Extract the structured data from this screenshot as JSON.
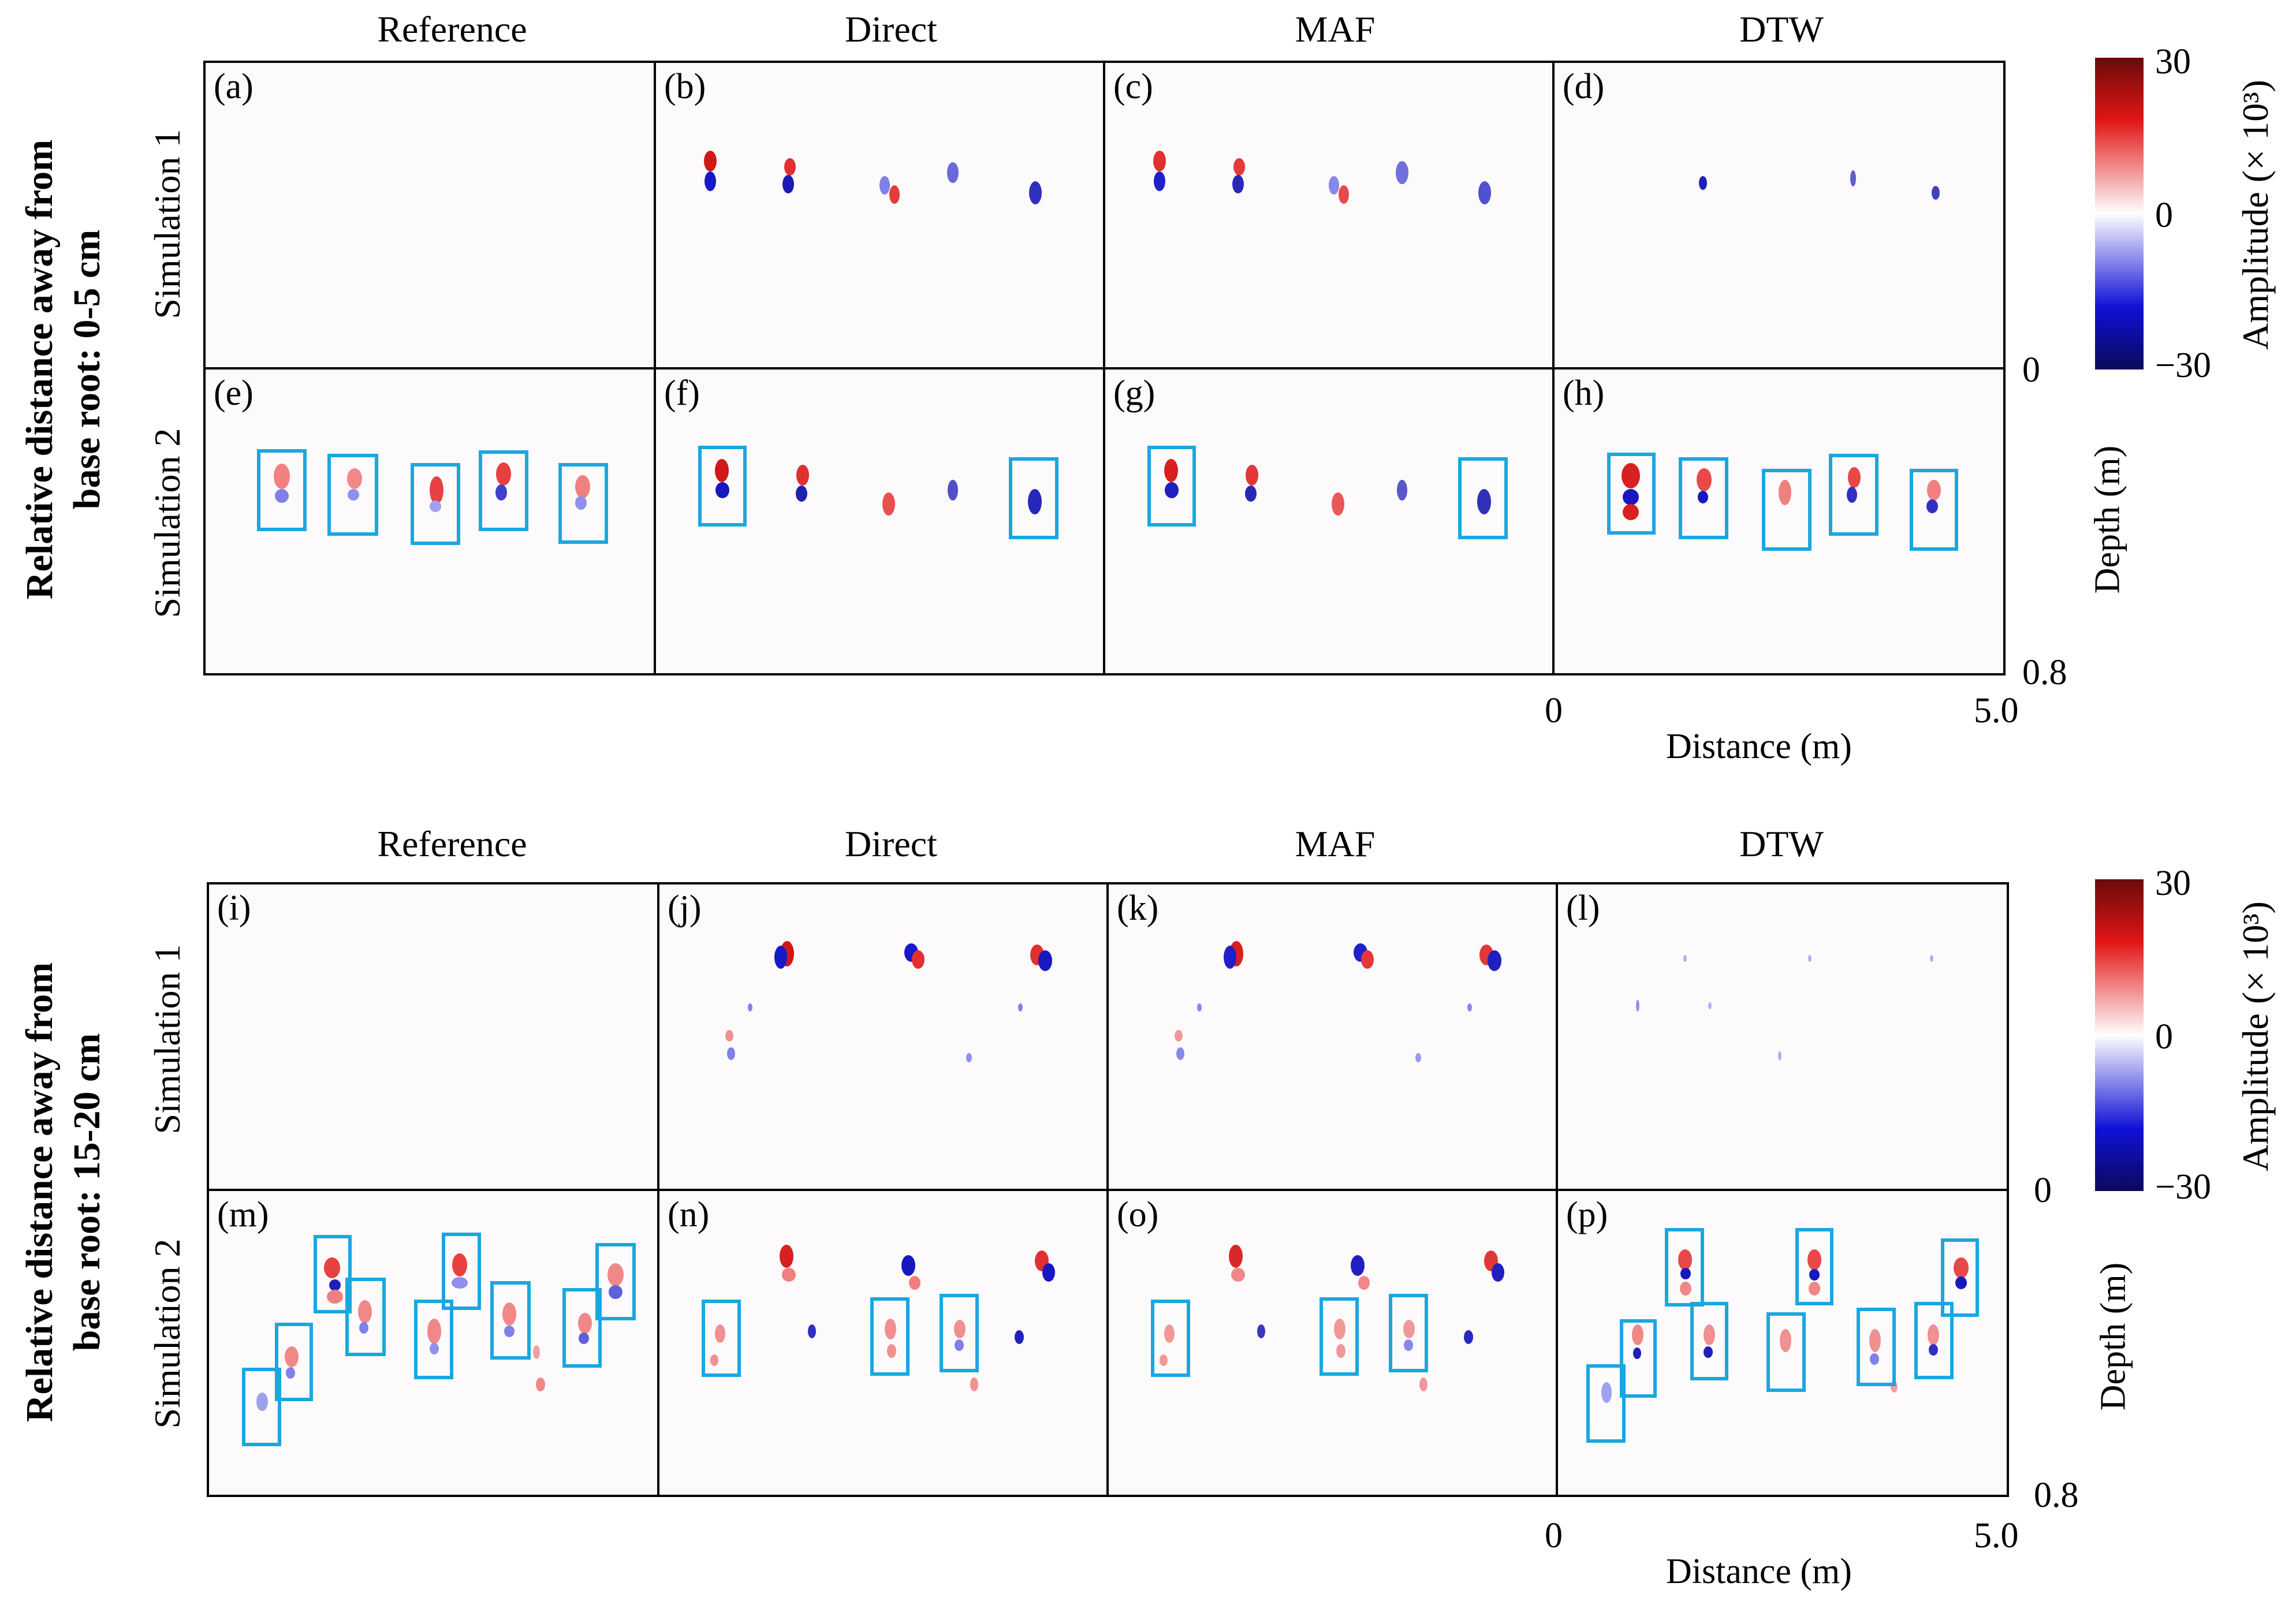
{
  "columns": [
    "Reference",
    "Direct",
    "MAF",
    "DTW"
  ],
  "rows": [
    "Simulation 1",
    "Simulation 2"
  ],
  "groups": [
    {
      "title_line1": "Relative distance away from",
      "title_line2": "base root: 0-5 cm",
      "panels": [
        "(a)",
        "(b)",
        "(c)",
        "(d)",
        "(e)",
        "(f)",
        "(g)",
        "(h)"
      ]
    },
    {
      "title_line1": "Relative distance away from",
      "title_line2": "base root: 15-20 cm",
      "panels": [
        "(i)",
        "(j)",
        "(k)",
        "(l)",
        "(m)",
        "(n)",
        "(o)",
        "(p)"
      ]
    }
  ],
  "axes": {
    "x_label": "Distance (m)",
    "x_min": "0",
    "x_max": "5.0",
    "y_label": "Depth (m)",
    "y_min": "0",
    "y_max": "0.8"
  },
  "colorbar": {
    "label": "Amplitude (× 10³)",
    "max_label": "30",
    "mid_label": "0",
    "min_label": "−30",
    "colors": [
      "#0a0a5a",
      "#1010d8",
      "#ffffff",
      "#e21515",
      "#6a0a0a"
    ]
  },
  "highlight_color": "#1aa7e0"
}
